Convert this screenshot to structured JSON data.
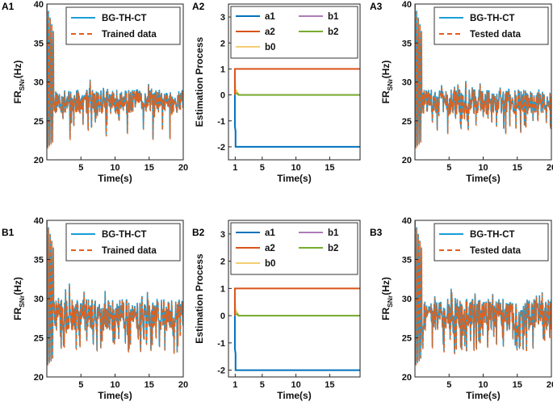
{
  "colors": {
    "bg_th_ct": "#1a9fd6",
    "trained": "#e0601c",
    "a1": "#0072bd",
    "a2": "#d95319",
    "b0": "#edb120",
    "b1": "#7e2f8e",
    "b2": "#77ac30"
  },
  "chart_data": [
    {
      "id": "A1",
      "type": "line",
      "label": "A1",
      "xlabel": "Time(s)",
      "ylabel": "FR",
      "ylabel_sub": "SNr",
      "ylabel_unit": "(Hz)",
      "xlim": [
        0,
        20
      ],
      "ylim": [
        20,
        40
      ],
      "xticks": [
        5,
        10,
        15,
        20
      ],
      "xtick_labels": [
        "5",
        "10",
        "15",
        "20"
      ],
      "yticks": [
        20,
        25,
        30,
        35,
        40
      ],
      "ytick_labels": [
        "20",
        "25",
        "30",
        "35",
        "40"
      ],
      "legend": [
        "BG-TH-CT",
        "Trained data"
      ],
      "legend_position": "top-right",
      "series": [
        {
          "name": "BG-TH-CT",
          "style": "solid",
          "color_key": "bg_th_ct"
        },
        {
          "name": "Trained data",
          "style": "dashed",
          "color_key": "trained"
        }
      ],
      "transient": {
        "peak": 40,
        "t_end": 1.0,
        "base": 27.5
      },
      "noise": {
        "base": 27.5,
        "amp": 1.5,
        "dip_count": 16,
        "dip_min": 22.5,
        "dip_max": 25.5,
        "seed": 11
      }
    },
    {
      "id": "A2",
      "type": "line",
      "label": "A2",
      "xlabel": "Time(s)",
      "ylabel": "Estimation Process",
      "xlim": [
        0,
        19.5
      ],
      "ylim": [
        -2.5,
        3.5
      ],
      "xticks": [
        1,
        5,
        10,
        15
      ],
      "xtick_labels": [
        "1",
        "5",
        "10",
        "15"
      ],
      "yticks": [
        -2,
        -1,
        0,
        1,
        2,
        3
      ],
      "ytick_labels": [
        "-2",
        "-1",
        "0",
        "1",
        "2",
        "3"
      ],
      "legend": [
        "a1",
        "b1",
        "a2",
        "b2",
        "b0"
      ],
      "legend_position": "top",
      "series": [
        {
          "name": "a1",
          "value": -2,
          "color_key": "a1"
        },
        {
          "name": "a2",
          "value": 1,
          "color_key": "a2"
        },
        {
          "name": "b0",
          "value": 0,
          "color_key": "b0"
        },
        {
          "name": "b1",
          "value": 0,
          "color_key": "b1"
        },
        {
          "name": "b2",
          "value": 0,
          "color_key": "b2"
        }
      ]
    },
    {
      "id": "A3",
      "type": "line",
      "label": "A3",
      "xlabel": "Time(s)",
      "ylabel": "FR",
      "ylabel_sub": "SNr",
      "ylabel_unit": "(Hz)",
      "xlim": [
        0,
        20
      ],
      "ylim": [
        20,
        40
      ],
      "xticks": [
        5,
        10,
        15,
        20
      ],
      "xtick_labels": [
        "5",
        "10",
        "15",
        "20"
      ],
      "yticks": [
        20,
        25,
        30,
        35,
        40
      ],
      "ytick_labels": [
        "20",
        "25",
        "30",
        "35",
        "40"
      ],
      "legend": [
        "BG-TH-CT",
        "Tested data"
      ],
      "legend_position": "top-right",
      "series": [
        {
          "name": "BG-TH-CT",
          "style": "solid",
          "color_key": "bg_th_ct"
        },
        {
          "name": "Tested data",
          "style": "dashed",
          "color_key": "trained"
        }
      ],
      "transient": {
        "peak": 40,
        "t_end": 1.0,
        "base": 27.5
      },
      "noise": {
        "base": 27.5,
        "amp": 1.6,
        "dip_count": 18,
        "dip_min": 23,
        "dip_max": 25.5,
        "seed": 29
      }
    },
    {
      "id": "B1",
      "type": "line",
      "label": "B1",
      "xlabel": "Time(s)",
      "ylabel": "FR",
      "ylabel_sub": "SNr",
      "ylabel_unit": "(Hz)",
      "xlim": [
        0,
        20
      ],
      "ylim": [
        20,
        40
      ],
      "xticks": [
        5,
        10,
        15,
        20
      ],
      "xtick_labels": [
        "5",
        "10",
        "15",
        "20"
      ],
      "yticks": [
        20,
        25,
        30,
        35,
        40
      ],
      "ytick_labels": [
        "20",
        "25",
        "30",
        "35",
        "40"
      ],
      "legend": [
        "BG-TH-CT",
        "Trained data"
      ],
      "legend_position": "top-right",
      "series": [
        {
          "name": "BG-TH-CT",
          "style": "solid",
          "color_key": "bg_th_ct"
        },
        {
          "name": "Trained data",
          "style": "dashed",
          "color_key": "trained"
        }
      ],
      "transient": {
        "peak": 40,
        "t_end": 1.0,
        "base": 27.5
      },
      "noise": {
        "base": 28,
        "amp": 2.0,
        "dip_count": 40,
        "dip_min": 23,
        "dip_max": 25.5,
        "seed": 47
      }
    },
    {
      "id": "B2",
      "type": "line",
      "label": "B2",
      "xlabel": "Time(s)",
      "ylabel": "Estimation Process",
      "xlim": [
        0,
        19.5
      ],
      "ylim": [
        -2.25,
        3.5
      ],
      "xticks": [
        1,
        5,
        10,
        15
      ],
      "xtick_labels": [
        "1",
        "5",
        "10",
        "15"
      ],
      "yticks": [
        -2,
        -1,
        0,
        1,
        2,
        3
      ],
      "ytick_labels": [
        "-2",
        "-1",
        "0",
        "1",
        "2",
        "3"
      ],
      "legend": [
        "a1",
        "b1",
        "a2",
        "b2",
        "b0"
      ],
      "legend_position": "top",
      "series": [
        {
          "name": "a1",
          "value": -2,
          "color_key": "a1"
        },
        {
          "name": "a2",
          "value": 1,
          "color_key": "a2"
        },
        {
          "name": "b0",
          "value": 0,
          "color_key": "b0"
        },
        {
          "name": "b1",
          "value": 0,
          "color_key": "b1"
        },
        {
          "name": "b2",
          "value": 0,
          "color_key": "b2"
        }
      ]
    },
    {
      "id": "B3",
      "type": "line",
      "label": "B3",
      "xlabel": "Time(s)",
      "ylabel": "FR",
      "ylabel_sub": "SNr",
      "ylabel_unit": "(Hz)",
      "xlim": [
        0,
        20
      ],
      "ylim": [
        20,
        40
      ],
      "xticks": [
        5,
        10,
        15,
        20
      ],
      "xtick_labels": [
        "5",
        "10",
        "15",
        "20"
      ],
      "yticks": [
        20,
        25,
        30,
        35,
        40
      ],
      "ytick_labels": [
        "20",
        "25",
        "30",
        "35",
        "40"
      ],
      "legend": [
        "BG-TH-CT",
        "Tested data"
      ],
      "legend_position": "top-right",
      "series": [
        {
          "name": "BG-TH-CT",
          "style": "solid",
          "color_key": "bg_th_ct"
        },
        {
          "name": "Tested data",
          "style": "dashed",
          "color_key": "trained"
        }
      ],
      "transient": {
        "peak": 40,
        "t_end": 1.0,
        "base": 27.5
      },
      "noise": {
        "base": 28,
        "amp": 2.0,
        "dip_count": 38,
        "dip_min": 23,
        "dip_max": 25.5,
        "seed": 83
      }
    }
  ]
}
